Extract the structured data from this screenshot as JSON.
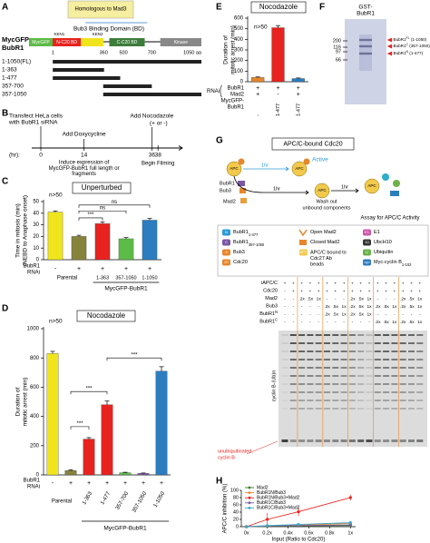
{
  "panel_labels": [
    "A",
    "B",
    "C",
    "D",
    "E",
    "F",
    "G",
    "H"
  ],
  "panel_a": {
    "homolog": "Homologous to Mad3",
    "bd": "Bub3 Binding Domain (BD)",
    "construct": [
      "MycGFP-",
      "BubR1"
    ],
    "ken": [
      "KEN1",
      "KEN2"
    ],
    "domains": [
      "MycGFP",
      "N-C20 BD",
      "C-C20 BD",
      "Kinase"
    ],
    "positions": [
      "1",
      "360",
      "500",
      "700",
      "1050 aa"
    ],
    "fragments": [
      "1-1050(FL)",
      "1-363",
      "1-477",
      "357-700",
      "357-1050"
    ]
  },
  "panel_b": {
    "transfect": [
      "Transfect HeLa cells",
      "with BubR1 siRNA"
    ],
    "dox": "Add Doxycycline",
    "noc": "Add Nocodazole",
    "noc_option": "(+ or -)",
    "hr": "(hr):",
    "times": [
      "0",
      "14",
      "36",
      "38"
    ],
    "induce": [
      "Induce expression of",
      "MycGFP-BubR1 full length or",
      "fragments"
    ],
    "film": "Begin Filming"
  },
  "panel_f": {
    "title": [
      "GST-",
      "BubR1"
    ],
    "ladder": [
      "200",
      "116",
      "97",
      "66"
    ],
    "bands": [
      {
        "name": "BubR1",
        "sup": "FL",
        "range": " (1-1050)"
      },
      {
        "name": "BubR1",
        "sup": "C",
        "range": " (357-1050)"
      },
      {
        "name": "BubR1",
        "sup": "N",
        "range": " (1-477)"
      }
    ]
  },
  "panel_g": {
    "title": "APC/C-bound Cdc20",
    "diagram": {
      "apc": "APC",
      "active": "Active",
      "time": "1hr",
      "bubr1": "BubR1",
      "bub3": "Bub3",
      "mad2": "Mad2",
      "wash": [
        "Wash out",
        "unbound components"
      ],
      "assay": "Assay for APC/C Activity"
    },
    "legend": [
      {
        "icon": "N",
        "label": "BubR1",
        "sub": "1-477"
      },
      {
        "icon": "C",
        "label": "BubR1",
        "sub": "357-1050"
      },
      {
        "icon": "3",
        "label": "Bub3"
      },
      {
        "icon": "20",
        "label": "Cdc20"
      },
      {
        "label": "Open Mad2"
      },
      {
        "label": "Closed Mad2"
      },
      {
        "icon": "APC",
        "label": [
          "APC/C bound to",
          "Cdc27 Ab",
          "beads"
        ]
      },
      {
        "icon": "E1",
        "label": "E1"
      },
      {
        "icon": "10",
        "label": "UbcH10"
      },
      {
        "icon": "U",
        "label": "Ubiquitin"
      },
      {
        "icon": "cyc",
        "label": "Myc-cyclin B",
        "sub": "1-102"
      }
    ],
    "gel_rows": [
      {
        "label": "iAPC/C",
        "cells": [
          "+",
          "+",
          "+",
          "+",
          "+",
          "+",
          "+",
          "+",
          "+",
          "+",
          "+",
          "+",
          "+",
          "+",
          "+",
          "+",
          "+"
        ]
      },
      {
        "label": "Cdc20",
        "cells": [
          "-",
          "+",
          "+",
          "+",
          "+",
          "+",
          "+",
          "+",
          "+",
          "+",
          "+",
          "+",
          "+",
          "+",
          "+",
          "+",
          "+"
        ]
      },
      {
        "label": "Mad2",
        "cells": [
          "-",
          "-",
          ".2x",
          ".5x",
          "1x",
          "-",
          "-",
          "-",
          ".2x",
          ".5x",
          "1x",
          "-",
          "-",
          "-",
          ".2x",
          ".5x",
          "1x"
        ]
      },
      {
        "label": "Bub3",
        "cells": [
          "-",
          "-",
          "-",
          "-",
          "-",
          ".2x",
          ".5x",
          "1x",
          ".2x",
          ".5x",
          "1x",
          ".2x",
          ".5x",
          "1x",
          ".2x",
          ".5x",
          "1x"
        ]
      },
      {
        "label": "BubR1",
        "sup": "N",
        "cells": [
          "-",
          "-",
          "-",
          "-",
          "-",
          ".2x",
          ".5x",
          "1x",
          ".2x",
          ".5x",
          "1x",
          "-",
          "-",
          "-",
          "-",
          "-",
          "-"
        ]
      },
      {
        "label": "BubR1",
        "sup": "C",
        "cells": [
          "-",
          "-",
          "-",
          "-",
          "-",
          "-",
          "-",
          "-",
          "-",
          "-",
          "-",
          ".2x",
          ".5x",
          "1x",
          ".2x",
          ".5x",
          "1x"
        ]
      }
    ],
    "gel_label": "cyclin B-(Ub)n",
    "unub": [
      "unubiquitinated",
      "cyclin B"
    ]
  },
  "chart_data": [
    {
      "type": "bar",
      "title": "Unperturbed",
      "note": "n>50",
      "ylabel": [
        "Time in mitosis (min)",
        "(NEBD to Anaphase onset)"
      ],
      "categories": [
        null,
        null,
        "1-363",
        "357-1050",
        "1-1050"
      ],
      "values": [
        41,
        20,
        31,
        18,
        34
      ],
      "errors": [
        1,
        1,
        1.5,
        1,
        1.5
      ],
      "colors": [
        "#f0e41c",
        "#86843c",
        "#e8231f",
        "#5dbb47",
        "#2b7dc0"
      ],
      "ylim": [
        0,
        50
      ],
      "yticks": [
        0,
        10,
        20,
        30,
        40,
        50
      ],
      "rows": [
        {
          "label": [
            "BubR1",
            "RNAi"
          ],
          "cells": [
            "-",
            "+",
            "+",
            "+",
            "+"
          ]
        }
      ],
      "groups": [
        "Parental",
        "MycGFP-BubR1"
      ],
      "annotations": [
        "***",
        "ns",
        "ns"
      ]
    },
    {
      "type": "bar",
      "title": "Nocodazole",
      "note": "n>50",
      "ylabel": [
        "Duration of",
        "mitotic arrest (min)"
      ],
      "categories": [
        null,
        null,
        "1-363",
        "1-477",
        "357-700",
        "357-1050",
        "1-1050"
      ],
      "values": [
        830,
        30,
        245,
        480,
        15,
        10,
        710
      ],
      "errors": [
        15,
        5,
        10,
        25,
        3,
        3,
        30
      ],
      "colors": [
        "#f0e41c",
        "#86843c",
        "#e8231f",
        "#e8231f",
        "#5dbb47",
        "#7b57a3",
        "#2b7dc0"
      ],
      "ylim": [
        0,
        1000
      ],
      "yticks": [
        0,
        200,
        400,
        600,
        800,
        1000
      ],
      "rows": [
        {
          "label": [
            "BubR1",
            "RNAi"
          ],
          "cells": [
            "-",
            "+",
            "+",
            "+",
            "+",
            "+",
            "+"
          ]
        }
      ],
      "groups": [
        "Parental",
        "MycGFP-BubR1"
      ],
      "annotations": [
        "***",
        "***",
        "***"
      ]
    },
    {
      "type": "bar",
      "title": "Nocodazole",
      "note": "n>50",
      "ylabel": [
        "Duration of",
        "mitotic arrest (min)"
      ],
      "values": [
        40,
        510,
        30
      ],
      "errors": [
        5,
        20,
        5
      ],
      "colors": [
        "#e8862a",
        "#e8231f",
        "#2b7dc0"
      ],
      "ylim": [
        0,
        600
      ],
      "yticks": [
        0,
        100,
        200,
        300,
        400,
        500,
        600
      ],
      "rows": [
        {
          "label": [
            "BubR1"
          ],
          "cells": [
            "+",
            "+",
            "+"
          ]
        },
        {
          "label": [
            "Mad2"
          ],
          "cells": [
            "+",
            "-",
            "+"
          ]
        },
        {
          "label": [
            "MycGFP-",
            "BubR1"
          ],
          "cells": [
            "-",
            "1-477",
            "1-477"
          ]
        }
      ],
      "row_group": "RNAi"
    },
    {
      "type": "line",
      "xlabel": "Input (Ratio to Cdc20)",
      "ylabel": "APC/C inhibition (%)",
      "x": [
        0,
        0.2,
        0.5,
        1
      ],
      "xlim": [
        -0.05,
        1.05
      ],
      "xticks": [
        {
          "value": 0,
          "label": "0x"
        },
        {
          "value": 0.2,
          "label": "0.2x"
        },
        {
          "value": 0.4,
          "label": "0.4x"
        },
        {
          "value": 0.6,
          "label": "0.6x"
        },
        {
          "value": 0.8,
          "label": "0.8x"
        },
        {
          "value": 1,
          "label": "1x"
        }
      ],
      "ylim": [
        0,
        100
      ],
      "yticks": [
        0,
        20,
        40,
        60,
        80,
        100
      ],
      "series": [
        {
          "name": "Mad2",
          "color": "#3a7d2c",
          "values": [
            0,
            1,
            2,
            3
          ],
          "errors": [
            0,
            1,
            1,
            2
          ]
        },
        {
          "name": "BubR1N/Bub3",
          "color": "#e8862a",
          "values": [
            0,
            2,
            4,
            9
          ],
          "errors": [
            0,
            2,
            3,
            4
          ]
        },
        {
          "name": "BubR1N/Bub3+Mad2",
          "color": "#e8231f",
          "values": [
            0,
            20,
            41,
            80
          ],
          "errors": [
            0,
            18,
            12,
            8
          ]
        },
        {
          "name": "BubR1C/Bub3",
          "color": "#7b57a3",
          "values": [
            0,
            2,
            3,
            5
          ],
          "errors": [
            0,
            1,
            2,
            3
          ]
        },
        {
          "name": "BubR1C/Bub3+Mad2",
          "color": "#3aa6c8",
          "values": [
            0,
            3,
            6,
            11
          ],
          "errors": [
            0,
            2,
            3,
            5
          ]
        }
      ]
    }
  ]
}
